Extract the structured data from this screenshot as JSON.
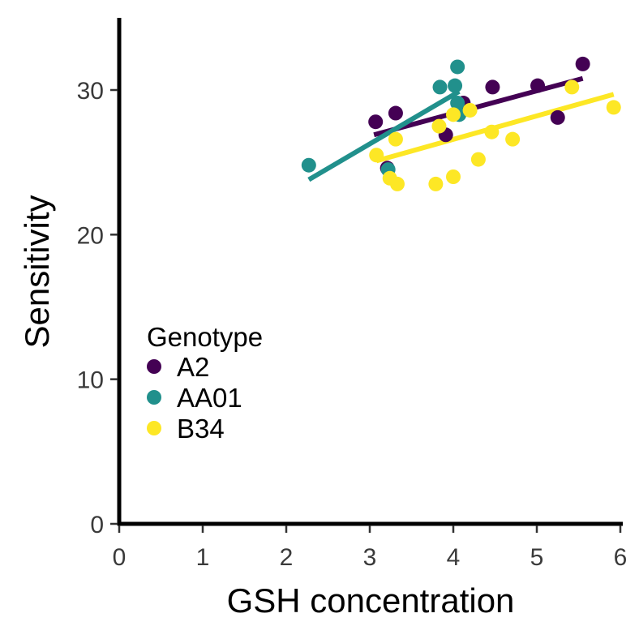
{
  "chart_data": {
    "type": "scatter",
    "xlabel": "GSH concentration",
    "ylabel": "Sensitivity",
    "xlim": [
      0,
      6
    ],
    "ylim": [
      0,
      35
    ],
    "x_ticks": [
      "0",
      "1",
      "2",
      "3",
      "4",
      "5",
      "6"
    ],
    "y_ticks": [
      "0",
      "10",
      "20",
      "30"
    ],
    "x_tick_values": [
      0,
      1,
      2,
      3,
      4,
      5,
      6
    ],
    "y_tick_values": [
      0,
      10,
      20,
      30
    ],
    "grid": false,
    "legend": {
      "title": "Genotype",
      "placement": "left-middle"
    },
    "series": [
      {
        "name": "A2",
        "color": "#440154",
        "points": [
          [
            3.07,
            27.8
          ],
          [
            3.21,
            24.6
          ],
          [
            3.31,
            28.4
          ],
          [
            3.91,
            26.9
          ],
          [
            4.12,
            29.1
          ],
          [
            4.47,
            30.2
          ],
          [
            5.01,
            30.3
          ],
          [
            5.25,
            28.1
          ],
          [
            5.55,
            31.8
          ]
        ],
        "fit": [
          [
            3.05,
            26.9
          ],
          [
            5.55,
            30.8
          ]
        ]
      },
      {
        "name": "AA01",
        "color": "#21908C",
        "points": [
          [
            2.27,
            24.8
          ],
          [
            3.22,
            24.5
          ],
          [
            3.84,
            30.2
          ],
          [
            4.02,
            30.3
          ],
          [
            4.05,
            31.6
          ],
          [
            4.05,
            29.1
          ],
          [
            4.07,
            28.3
          ]
        ],
        "fit": [
          [
            2.27,
            23.8
          ],
          [
            4.07,
            29.9
          ]
        ]
      },
      {
        "name": "B34",
        "color": "#FDE725",
        "points": [
          [
            3.08,
            25.5
          ],
          [
            3.24,
            23.9
          ],
          [
            3.31,
            26.6
          ],
          [
            3.33,
            23.5
          ],
          [
            3.79,
            23.5
          ],
          [
            3.83,
            27.5
          ],
          [
            4.0,
            24.0
          ],
          [
            4.0,
            28.3
          ],
          [
            4.2,
            28.6
          ],
          [
            4.3,
            25.2
          ],
          [
            4.46,
            27.1
          ],
          [
            4.71,
            26.6
          ],
          [
            5.42,
            30.2
          ],
          [
            5.92,
            28.8
          ]
        ],
        "fit": [
          [
            3.08,
            25.1
          ],
          [
            5.92,
            29.7
          ]
        ]
      }
    ]
  }
}
